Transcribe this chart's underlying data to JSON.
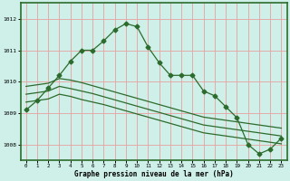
{
  "title": "Graphe pression niveau de la mer (hPa)",
  "background_color": "#cef0e8",
  "grid_color": "#e8a0a0",
  "line_color": "#2d6b2d",
  "border_color": "#2d6b2d",
  "xlim": [
    -0.5,
    23.5
  ],
  "ylim": [
    1007.5,
    1012.5
  ],
  "yticks": [
    1008,
    1009,
    1010,
    1011,
    1012
  ],
  "xticks": [
    0,
    1,
    2,
    3,
    4,
    5,
    6,
    7,
    8,
    9,
    10,
    11,
    12,
    13,
    14,
    15,
    16,
    17,
    18,
    19,
    20,
    21,
    22,
    23
  ],
  "line1_x": [
    0,
    1,
    2,
    3,
    4,
    5,
    6,
    7,
    8,
    9,
    10,
    11,
    12,
    13,
    14,
    15,
    16,
    17,
    18,
    19,
    20,
    21,
    22,
    23
  ],
  "line1_y": [
    1009.1,
    1009.4,
    1009.8,
    1010.2,
    1010.65,
    1011.0,
    1011.0,
    1011.3,
    1011.65,
    1011.85,
    1011.75,
    1011.1,
    1010.6,
    1010.2,
    1010.2,
    1010.2,
    1009.7,
    1009.55,
    1009.2,
    1008.85,
    1008.0,
    1007.7,
    1007.85,
    1008.2
  ],
  "line2_x": [
    0,
    1,
    2,
    3,
    4,
    5,
    6,
    7,
    8,
    9,
    10,
    11,
    12,
    13,
    14,
    15,
    16,
    17,
    18,
    19,
    20,
    21,
    22,
    23
  ],
  "line2_y": [
    1009.85,
    1009.9,
    1009.95,
    1010.1,
    1010.05,
    1009.97,
    1009.87,
    1009.77,
    1009.67,
    1009.57,
    1009.47,
    1009.37,
    1009.27,
    1009.17,
    1009.07,
    1008.97,
    1008.87,
    1008.82,
    1008.77,
    1008.72,
    1008.67,
    1008.62,
    1008.57,
    1008.52
  ],
  "line3_x": [
    0,
    1,
    2,
    3,
    4,
    5,
    6,
    7,
    8,
    9,
    10,
    11,
    12,
    13,
    14,
    15,
    16,
    17,
    18,
    19,
    20,
    21,
    22,
    23
  ],
  "line3_y": [
    1009.6,
    1009.65,
    1009.7,
    1009.85,
    1009.78,
    1009.7,
    1009.62,
    1009.52,
    1009.42,
    1009.32,
    1009.22,
    1009.12,
    1009.02,
    1008.92,
    1008.82,
    1008.72,
    1008.62,
    1008.57,
    1008.52,
    1008.47,
    1008.42,
    1008.37,
    1008.32,
    1008.27
  ],
  "line4_x": [
    0,
    1,
    2,
    3,
    4,
    5,
    6,
    7,
    8,
    9,
    10,
    11,
    12,
    13,
    14,
    15,
    16,
    17,
    18,
    19,
    20,
    21,
    22,
    23
  ],
  "line4_y": [
    1009.35,
    1009.4,
    1009.45,
    1009.6,
    1009.53,
    1009.43,
    1009.35,
    1009.27,
    1009.17,
    1009.07,
    1008.97,
    1008.87,
    1008.77,
    1008.67,
    1008.57,
    1008.47,
    1008.37,
    1008.32,
    1008.27,
    1008.22,
    1008.17,
    1008.12,
    1008.07,
    1008.02
  ]
}
